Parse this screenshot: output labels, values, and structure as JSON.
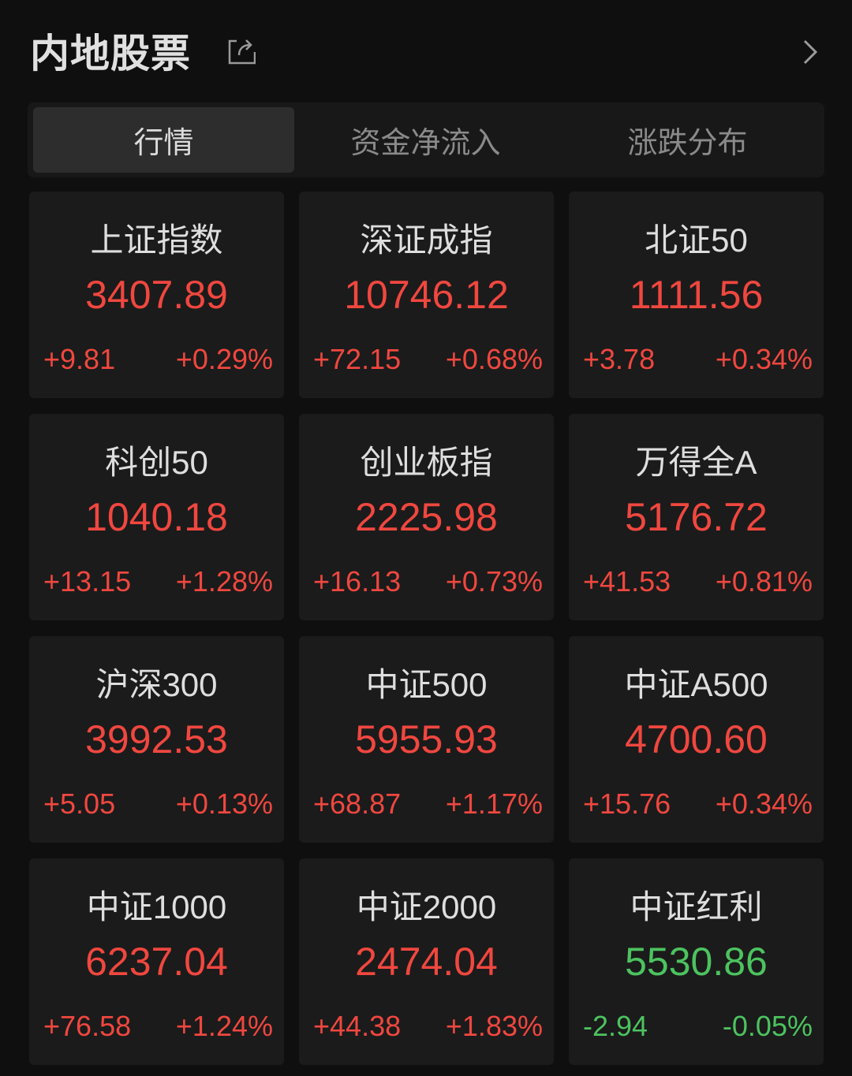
{
  "header": {
    "title": "内地股票",
    "share_icon": "share-icon",
    "more_icon": "chevron-right-icon"
  },
  "tabs": [
    {
      "label": "行情",
      "active": true
    },
    {
      "label": "资金净流入",
      "active": false
    },
    {
      "label": "涨跌分布",
      "active": false
    }
  ],
  "colors": {
    "up": "#f0473f",
    "down": "#4cc35f",
    "background": "#0f0f0f",
    "card": "#1b1b1b"
  },
  "indices": [
    {
      "name": "上证指数",
      "value": "3407.89",
      "change": "+9.81",
      "percent": "+0.29%",
      "direction": "up"
    },
    {
      "name": "深证成指",
      "value": "10746.12",
      "change": "+72.15",
      "percent": "+0.68%",
      "direction": "up"
    },
    {
      "name": "北证50",
      "value": "1111.56",
      "change": "+3.78",
      "percent": "+0.34%",
      "direction": "up"
    },
    {
      "name": "科创50",
      "value": "1040.18",
      "change": "+13.15",
      "percent": "+1.28%",
      "direction": "up"
    },
    {
      "name": "创业板指",
      "value": "2225.98",
      "change": "+16.13",
      "percent": "+0.73%",
      "direction": "up"
    },
    {
      "name": "万得全A",
      "value": "5176.72",
      "change": "+41.53",
      "percent": "+0.81%",
      "direction": "up"
    },
    {
      "name": "沪深300",
      "value": "3992.53",
      "change": "+5.05",
      "percent": "+0.13%",
      "direction": "up"
    },
    {
      "name": "中证500",
      "value": "5955.93",
      "change": "+68.87",
      "percent": "+1.17%",
      "direction": "up"
    },
    {
      "name": "中证A500",
      "value": "4700.60",
      "change": "+15.76",
      "percent": "+0.34%",
      "direction": "up"
    },
    {
      "name": "中证1000",
      "value": "6237.04",
      "change": "+76.58",
      "percent": "+1.24%",
      "direction": "up"
    },
    {
      "name": "中证2000",
      "value": "2474.04",
      "change": "+44.38",
      "percent": "+1.83%",
      "direction": "up"
    },
    {
      "name": "中证红利",
      "value": "5530.86",
      "change": "-2.94",
      "percent": "-0.05%",
      "direction": "down"
    }
  ]
}
